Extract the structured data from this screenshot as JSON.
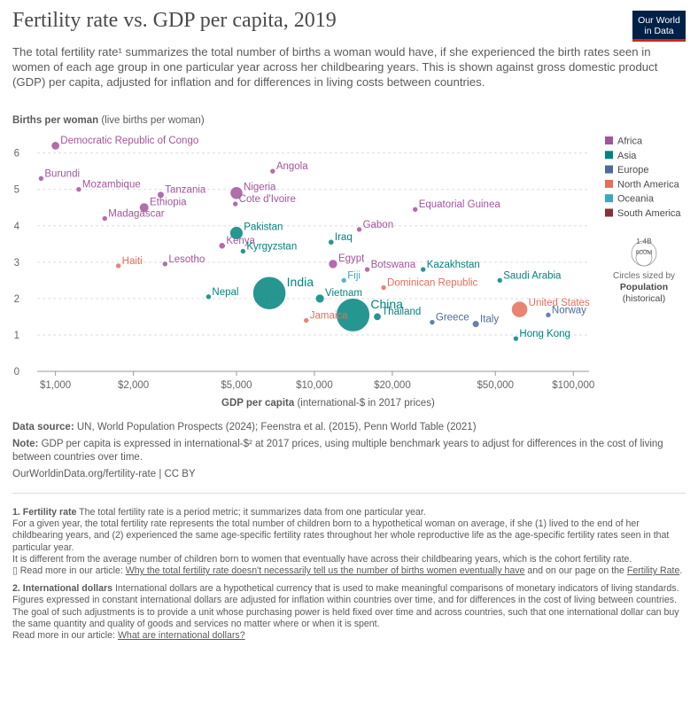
{
  "header": {
    "title": "Fertility rate vs. GDP per capita, 2019",
    "logo_line1": "Our World",
    "logo_line2": "in Data",
    "subtitle": "The total fertility rate¹ summarizes the total number of births a woman would have, if she experienced the birth rates seen in women of each age group in one particular year across her childbearing years. This is shown against gross domestic product (GDP) per capita, adjusted for inflation and for differences in living costs between countries."
  },
  "chart_data": {
    "type": "scatter",
    "title": "Fertility rate vs. GDP per capita, 2019",
    "ylabel_bold": "Births per woman",
    "ylabel_rest": " (live births per woman)",
    "xlabel_bold": "GDP per capita",
    "xlabel_rest": " (international-$ in 2017 prices)",
    "x_scale": "log",
    "xlim": [
      850,
      115000
    ],
    "ylim": [
      0,
      6.6
    ],
    "x_ticks": [
      1000,
      2000,
      5000,
      10000,
      20000,
      50000,
      100000
    ],
    "x_tick_labels": [
      "$1,000",
      "$2,000",
      "$5,000",
      "$10,000",
      "$20,000",
      "$50,000",
      "$100,000"
    ],
    "y_ticks": [
      0,
      1,
      2,
      3,
      4,
      5,
      6
    ],
    "y_tick_labels": [
      "0",
      "1",
      "2",
      "3",
      "4",
      "5",
      "6"
    ],
    "grid": "horizontal-dashed",
    "legend_position": "right",
    "regions": [
      {
        "name": "Africa",
        "color": "#a2559c"
      },
      {
        "name": "Asia",
        "color": "#00847e"
      },
      {
        "name": "Europe",
        "color": "#4c6a9c"
      },
      {
        "name": "North America",
        "color": "#e56e5a"
      },
      {
        "name": "Oceania",
        "color": "#38aaba"
      },
      {
        "name": "South America",
        "color": "#883039"
      }
    ],
    "size_legend": {
      "large_label": "1.4B",
      "small_label": "600M",
      "caption1": "Circles sized by",
      "caption2": "Population",
      "caption3": "(historical)"
    },
    "points": [
      {
        "label": "Democratic Republic of Congo",
        "x": 1000,
        "y": 6.2,
        "region": "Africa",
        "pop": 87
      },
      {
        "label": "Burundi",
        "x": 880,
        "y": 5.3,
        "region": "Africa",
        "pop": 12
      },
      {
        "label": "Mozambique",
        "x": 1230,
        "y": 5.0,
        "region": "Africa",
        "pop": 30
      },
      {
        "label": "Tanzania",
        "x": 2550,
        "y": 4.85,
        "region": "Africa",
        "pop": 58
      },
      {
        "label": "Nigeria",
        "x": 5000,
        "y": 4.9,
        "region": "Africa",
        "pop": 200
      },
      {
        "label": "Angola",
        "x": 6900,
        "y": 5.5,
        "region": "Africa",
        "pop": 32
      },
      {
        "label": "Ethiopia",
        "x": 2200,
        "y": 4.5,
        "region": "Africa",
        "pop": 112
      },
      {
        "label": "Madagascar",
        "x": 1550,
        "y": 4.2,
        "region": "Africa",
        "pop": 27
      },
      {
        "label": "Cote d'Ivoire",
        "x": 4950,
        "y": 4.6,
        "region": "Africa",
        "pop": 26
      },
      {
        "label": "Equatorial Guinea",
        "x": 24500,
        "y": 4.45,
        "region": "Africa",
        "pop": 1.4
      },
      {
        "label": "Gabon",
        "x": 14900,
        "y": 3.9,
        "region": "Africa",
        "pop": 2.2
      },
      {
        "label": "Kenya",
        "x": 4400,
        "y": 3.45,
        "region": "Africa",
        "pop": 52
      },
      {
        "label": "Lesotho",
        "x": 2650,
        "y": 2.95,
        "region": "Africa",
        "pop": 2.1
      },
      {
        "label": "Egypt",
        "x": 11800,
        "y": 2.95,
        "region": "Africa",
        "pop": 100
      },
      {
        "label": "Botswana",
        "x": 16000,
        "y": 2.8,
        "region": "Africa",
        "pop": 2.3
      },
      {
        "label": "Pakistan",
        "x": 5000,
        "y": 3.8,
        "region": "Asia",
        "pop": 216
      },
      {
        "label": "Kyrgyzstan",
        "x": 5300,
        "y": 3.3,
        "region": "Asia",
        "pop": 6.4
      },
      {
        "label": "Iraq",
        "x": 11600,
        "y": 3.55,
        "region": "Asia",
        "pop": 39
      },
      {
        "label": "Kazakhstan",
        "x": 26300,
        "y": 2.8,
        "region": "Asia",
        "pop": 18.5
      },
      {
        "label": "Saudi Arabia",
        "x": 52000,
        "y": 2.5,
        "region": "Asia",
        "pop": 34
      },
      {
        "label": "India",
        "x": 6700,
        "y": 2.15,
        "region": "Asia",
        "pop": 1380
      },
      {
        "label": "Nepal",
        "x": 3900,
        "y": 2.05,
        "region": "Asia",
        "pop": 28
      },
      {
        "label": "Vietnam",
        "x": 10500,
        "y": 2.0,
        "region": "Asia",
        "pop": 96
      },
      {
        "label": "China",
        "x": 14100,
        "y": 1.55,
        "region": "Asia",
        "pop": 1420
      },
      {
        "label": "Hong Kong",
        "x": 60000,
        "y": 0.9,
        "region": "Asia",
        "pop": 7.5
      },
      {
        "label": "Fiji",
        "x": 13000,
        "y": 2.5,
        "region": "Oceania",
        "pop": 0.9
      },
      {
        "label": "Dominican Republic",
        "x": 18500,
        "y": 2.3,
        "region": "North America",
        "pop": 11
      },
      {
        "label": "Jamaica",
        "x": 9300,
        "y": 1.4,
        "region": "North America",
        "pop": 2.9
      },
      {
        "label": "Haiti",
        "x": 1750,
        "y": 2.9,
        "region": "North America",
        "pop": 11
      },
      {
        "label": "United States",
        "x": 62000,
        "y": 1.7,
        "region": "North America",
        "pop": 330
      },
      {
        "label": "Thailand",
        "x": 17500,
        "y": 1.5,
        "region": "Asia",
        "pop": 70
      },
      {
        "label": "Greece",
        "x": 28500,
        "y": 1.35,
        "region": "Europe",
        "pop": 10.5
      },
      {
        "label": "Italy",
        "x": 42000,
        "y": 1.3,
        "region": "Europe",
        "pop": 60
      },
      {
        "label": "Norway",
        "x": 80000,
        "y": 1.55,
        "region": "Europe",
        "pop": 5.4
      }
    ]
  },
  "footer": {
    "source_bold": "Data source:",
    "source_text": " UN, World Population Prospects (2024); Feenstra et al. (2015), Penn World Table (2021)",
    "note_bold": "Note:",
    "note_text": " GDP per capita is expressed in international-$² at 2017 prices, using multiple benchmark years to adjust for differences in the cost of living between countries over time.",
    "url": "OurWorldinData.org/fertility-rate | CC BY"
  },
  "notes": {
    "n1_bold": "1. Fertility rate",
    "n1_intro": " The total fertility rate is a period metric; it summarizes data from one particular year.",
    "n1_p2": "For a given year, the total fertility rate represents the total number of children born to a hypothetical woman on average, if she (1) lived to the end of her childbearing years, and (2) experienced the same age-specific fertility rates throughout her whole reproductive life as the age-specific fertility rates seen in that particular year.",
    "n1_p3": "It is different from the average number of children born to women that eventually have across their childbearing years, which is the cohort fertility rate.",
    "n1_p4_pre": "Read more in our article: ",
    "n1_p4_link1": "Why the total fertility rate doesn't necessarily tell us the number of births women eventually have",
    "n1_p4_mid": " and on our page on the ",
    "n1_p4_link2": "Fertility Rate",
    "n1_p4_end": ".",
    "n2_bold": "2. International dollars",
    "n2_intro": " International dollars are a hypothetical currency that is used to make meaningful comparisons of monetary indicators of living standards.",
    "n2_p2": "Figures expressed in constant international dollars are adjusted for inflation within countries over time, and for differences in the cost of living between countries.",
    "n2_p3": "The goal of such adjustments is to provide a unit whose purchasing power is held fixed over time and across countries, such that one international dollar can buy the same quantity and quality of goods and services no matter where or when it is spent.",
    "n2_p4_pre": "Read more in our article: ",
    "n2_p4_link": "What are international dollars?"
  }
}
